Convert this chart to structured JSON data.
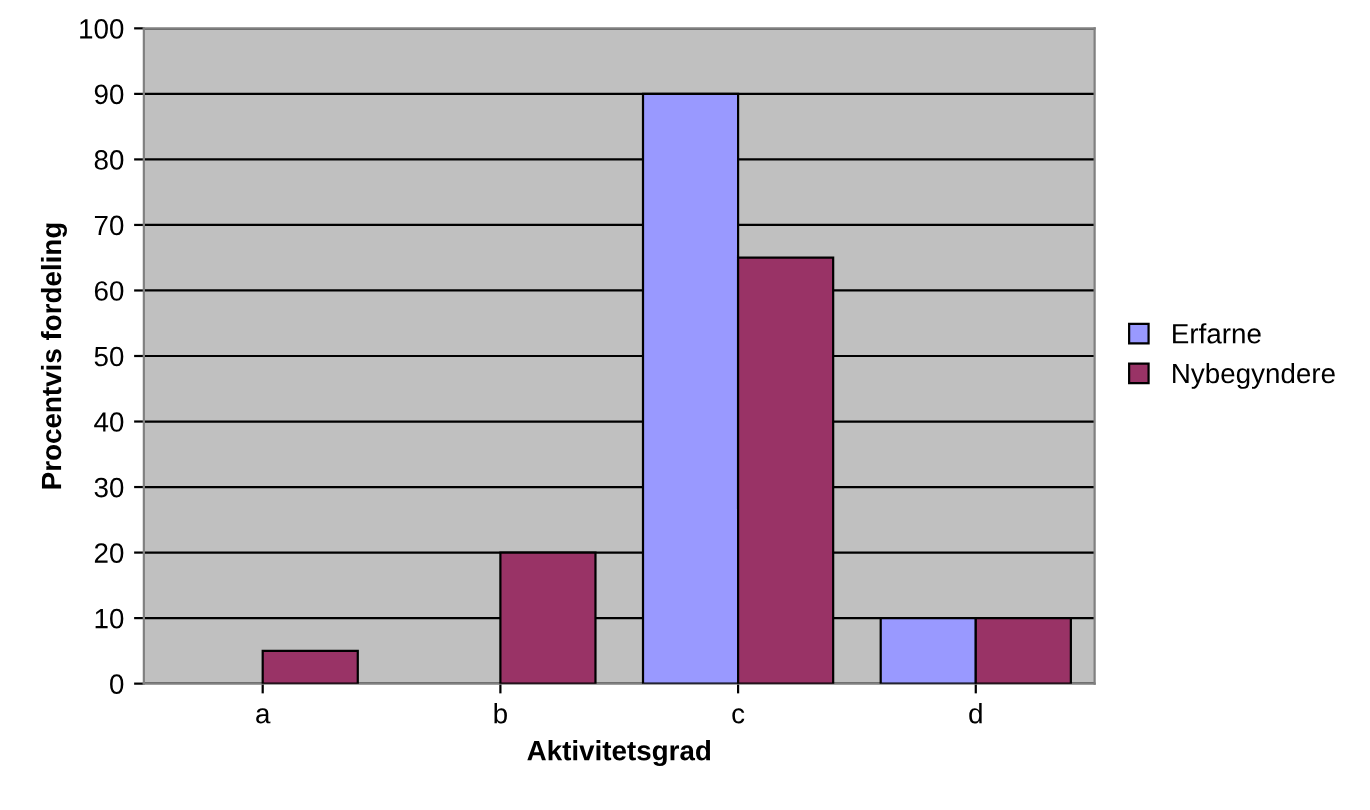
{
  "chart_data": {
    "type": "bar",
    "xlabel": "Aktivitetsgrad",
    "ylabel": "Procentvis fordeling",
    "categories": [
      "a",
      "b",
      "c",
      "d"
    ],
    "series": [
      {
        "name": "Erfarne",
        "color": "#9999ff",
        "values": [
          0,
          0,
          90,
          10
        ]
      },
      {
        "name": "Nybegyndere",
        "color": "#993366",
        "values": [
          5,
          20,
          65,
          10
        ]
      }
    ],
    "ylim": [
      0,
      100
    ],
    "yticks": [
      0,
      10,
      20,
      30,
      40,
      50,
      60,
      70,
      80,
      90,
      100
    ],
    "grid": "y",
    "legend": "right"
  }
}
